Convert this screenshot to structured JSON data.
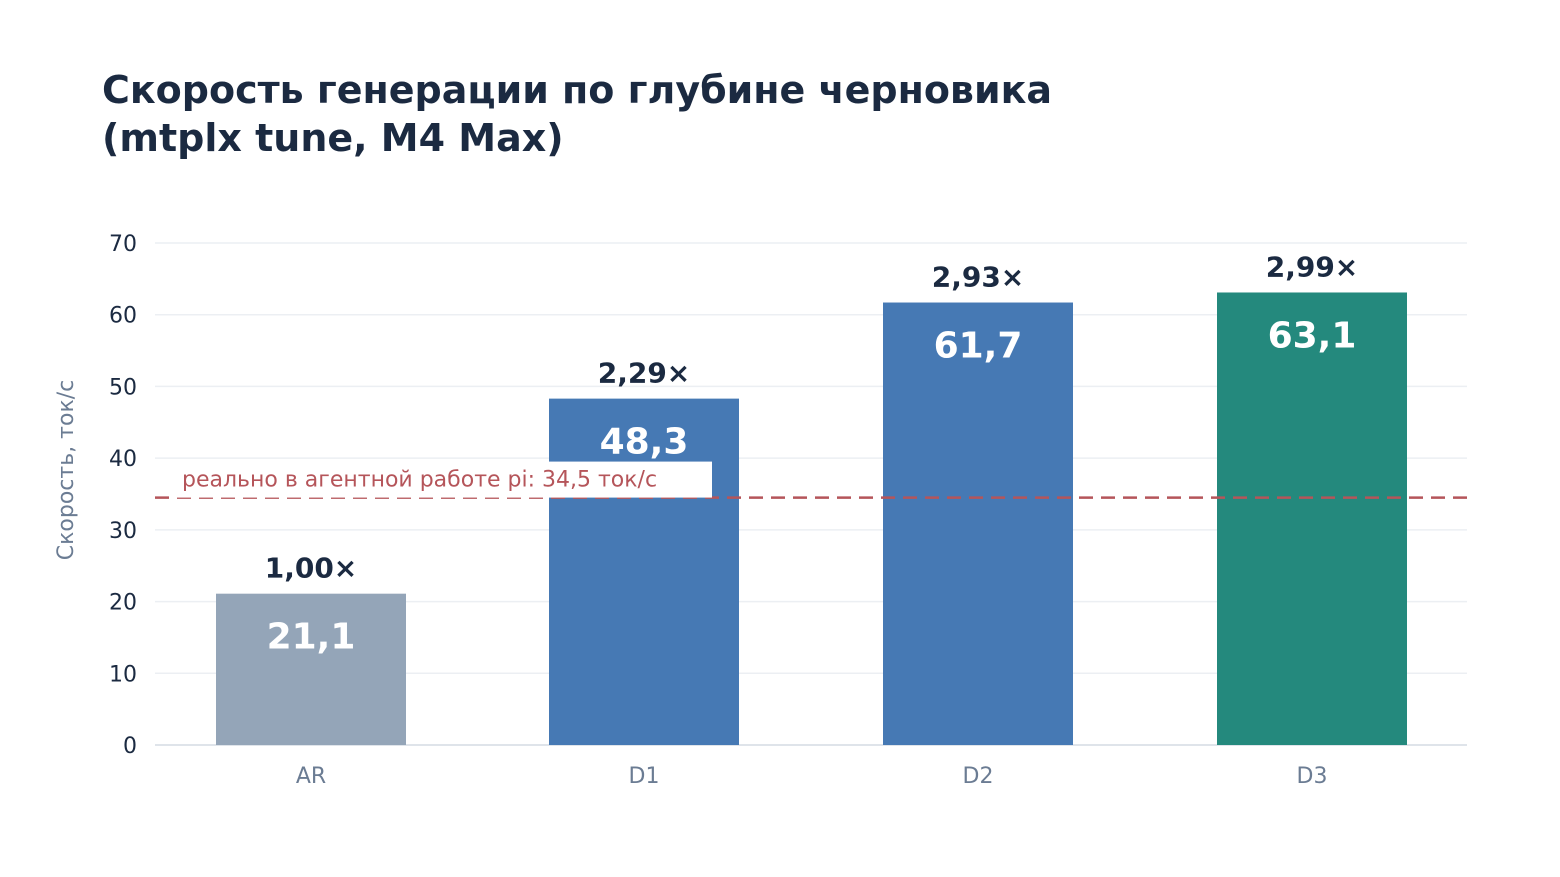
{
  "title_lines": [
    "Скорость генерации по глубине черновика",
    "(mtplx tune, M4 Max)"
  ],
  "chart_data": {
    "type": "bar",
    "title": "Скорость генерации по глубине черновика (mtplx tune, M4 Max)",
    "xlabel": "",
    "ylabel": "Скорость, ток/с",
    "categories": [
      "AR",
      "D1",
      "D2",
      "D3"
    ],
    "values": [
      21.1,
      48.3,
      61.7,
      63.1
    ],
    "value_labels": [
      "21,1",
      "48,3",
      "61,7",
      "63,1"
    ],
    "ratio_labels": [
      "1,00×",
      "2,29×",
      "2,93×",
      "2,99×"
    ],
    "ylim": [
      0,
      70
    ],
    "yticks": [
      0,
      10,
      20,
      30,
      40,
      50,
      60,
      70
    ],
    "grid": true,
    "bar_colors": [
      "#94a5b8",
      "#4679b4",
      "#4679b4",
      "#24897d"
    ],
    "reference_line": {
      "value": 34.5,
      "label": "реально в агентной работе pi: 34,5 ток/с",
      "color": "#b5555a"
    }
  }
}
